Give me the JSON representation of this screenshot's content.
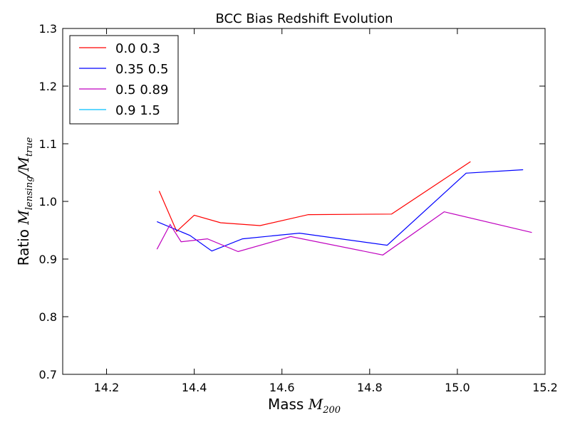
{
  "chart_data": {
    "type": "line",
    "title": "BCC Bias Redshift Evolution",
    "xlabel": "Mass",
    "xlabel_math": "M",
    "xlabel_math_sub": "200",
    "ylabel": "Ratio",
    "ylabel_math_num": "M",
    "ylabel_math_num_sub": "lensing",
    "ylabel_math_den": "M",
    "ylabel_math_den_sub": "true",
    "xlim": [
      14.1,
      15.2
    ],
    "ylim": [
      0.7,
      1.3
    ],
    "xticks": [
      14.2,
      14.4,
      14.6,
      14.8,
      15.0,
      15.2
    ],
    "xtick_labels": [
      "14.2",
      "14.4",
      "14.6",
      "14.8",
      "15.0",
      "15.2"
    ],
    "yticks": [
      0.7,
      0.8,
      0.9,
      1.0,
      1.1,
      1.2,
      1.3
    ],
    "ytick_labels": [
      "0.7",
      "0.8",
      "0.9",
      "1.0",
      "1.1",
      "1.2",
      "1.3"
    ],
    "grid": false,
    "legend_position": "top-left",
    "series": [
      {
        "name": "0.0 0.3",
        "color": "#ff0000",
        "x": [
          14.32,
          14.36,
          14.4,
          14.46,
          14.55,
          14.66,
          14.85,
          15.03
        ],
        "y": [
          1.018,
          0.948,
          0.976,
          0.963,
          0.958,
          0.977,
          0.978,
          1.069
        ]
      },
      {
        "name": "0.35 0.5",
        "color": "#0000ff",
        "x": [
          14.315,
          14.39,
          14.44,
          14.51,
          14.64,
          14.84,
          15.02,
          15.15
        ],
        "y": [
          0.965,
          0.941,
          0.914,
          0.935,
          0.945,
          0.924,
          1.049,
          1.055
        ]
      },
      {
        "name": "0.5 0.89",
        "color": "#bf00bf",
        "x": [
          14.315,
          14.345,
          14.37,
          14.43,
          14.5,
          14.62,
          14.83,
          14.97,
          15.17
        ],
        "y": [
          0.917,
          0.96,
          0.93,
          0.935,
          0.913,
          0.939,
          0.907,
          0.982,
          0.946
        ]
      },
      {
        "name": "0.9 1.5",
        "color": "#00bfff",
        "x": [],
        "y": []
      }
    ]
  }
}
